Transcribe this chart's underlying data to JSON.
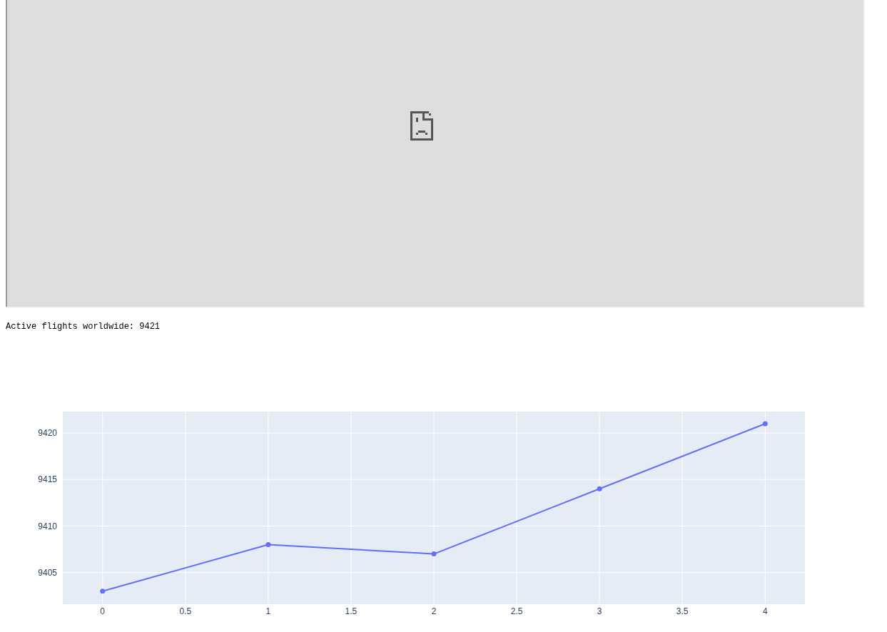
{
  "chart_data": {
    "type": "line",
    "title": "Active flights worldwide: 9421",
    "x": [
      0,
      1,
      2,
      3,
      4
    ],
    "series": [
      {
        "color": "#636efa",
        "values": [
          9403,
          9408,
          9407,
          9414,
          9421
        ]
      }
    ],
    "xlim": [
      -0.24,
      4.24
    ],
    "ylim": [
      9401.6,
      9422.3
    ],
    "xticks": [
      0,
      0.5,
      1,
      1.5,
      2,
      2.5,
      3,
      3.5,
      4
    ],
    "yticks": [
      9405,
      9410,
      9415,
      9420
    ],
    "grid": true,
    "marker": "circle"
  }
}
